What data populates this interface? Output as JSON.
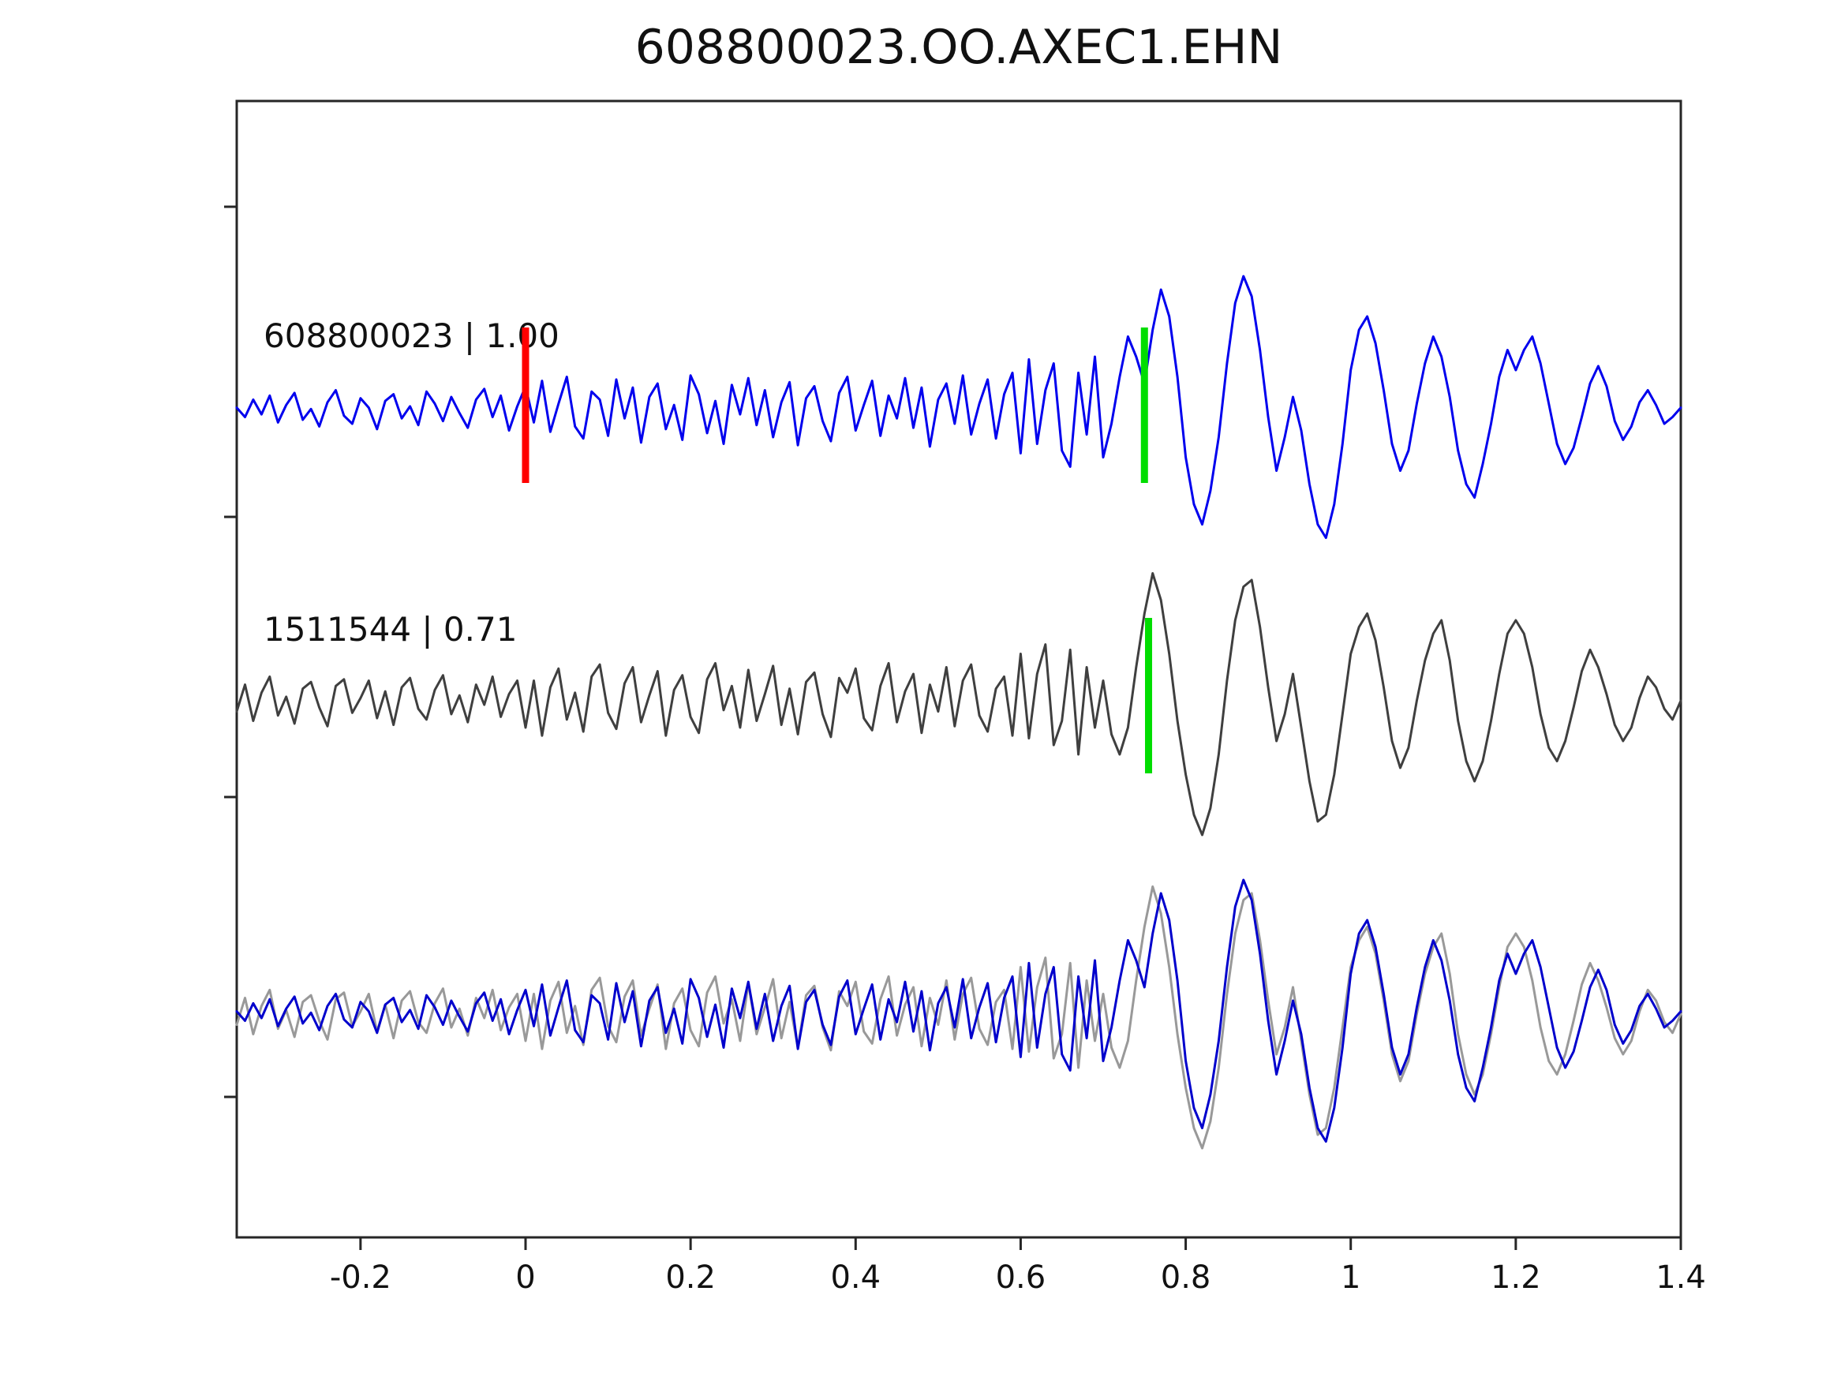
{
  "title": "608800023.OO.AXEC1.EHN",
  "colors": {
    "trace_blue": "#0000ee",
    "trace_dark_gray": "#3f3f3f",
    "trace_light_gray": "#999999",
    "pick_red": "#ff0000",
    "pick_green": "#00dd00",
    "axis": "#262626",
    "text": "#111111"
  },
  "chart_data": {
    "type": "line",
    "title": "608800023.OO.AXEC1.EHN",
    "xlabel": "",
    "ylabel": "",
    "xlim": [
      -0.35,
      1.4
    ],
    "grid": false,
    "legend": "none",
    "x_ticks": [
      -0.2,
      0,
      0.2,
      0.4,
      0.6,
      0.8,
      1,
      1.2,
      1.4
    ],
    "x_tick_labels": [
      "-0.2",
      "0",
      "0.2",
      "0.4",
      "0.6",
      "0.8",
      "1",
      "1.2",
      "1.4"
    ],
    "x_start": -0.35,
    "dx": 0.01,
    "panels": [
      {
        "label": "608800023 | 1.00",
        "series": [
          "master"
        ],
        "colors": [
          "#0000ee"
        ],
        "picks": [
          {
            "x": 0.0,
            "color": "#ff0000",
            "name": "origin-pick"
          },
          {
            "x": 0.75,
            "color": "#00dd00",
            "name": "arrival-pick"
          }
        ]
      },
      {
        "label": "1511544 | 0.71",
        "series": [
          "match"
        ],
        "colors": [
          "#3f3f3f"
        ],
        "picks": [
          {
            "x": 0.755,
            "color": "#00dd00",
            "name": "arrival-pick"
          }
        ]
      },
      {
        "label": "",
        "series": [
          "match",
          "master"
        ],
        "colors": [
          "#999999",
          "#0000cc"
        ],
        "picks": []
      }
    ],
    "series": {
      "master": [
        0.02,
        -0.05,
        0.08,
        -0.03,
        0.11,
        -0.09,
        0.04,
        0.13,
        -0.07,
        0.01,
        -0.12,
        0.06,
        0.15,
        -0.04,
        -0.1,
        0.09,
        0.02,
        -0.14,
        0.07,
        0.12,
        -0.06,
        0.03,
        -0.11,
        0.14,
        0.05,
        -0.08,
        0.1,
        -0.02,
        -0.13,
        0.08,
        0.16,
        -0.05,
        0.11,
        -0.15,
        0.03,
        0.18,
        -0.09,
        0.22,
        -0.16,
        0.05,
        0.25,
        -0.12,
        -0.21,
        0.14,
        0.08,
        -0.19,
        0.23,
        -0.06,
        0.17,
        -0.24,
        0.1,
        0.2,
        -0.14,
        0.04,
        -0.22,
        0.26,
        0.12,
        -0.17,
        0.07,
        -0.25,
        0.19,
        -0.03,
        0.24,
        -0.11,
        0.15,
        -0.2,
        0.06,
        0.21,
        -0.26,
        0.09,
        0.18,
        -0.08,
        -0.23,
        0.13,
        0.25,
        -0.15,
        0.04,
        0.22,
        -0.19,
        0.11,
        -0.06,
        0.24,
        -0.13,
        0.17,
        -0.27,
        0.08,
        0.2,
        -0.1,
        0.26,
        -0.18,
        0.05,
        0.23,
        -0.21,
        0.12,
        0.28,
        -0.32,
        0.38,
        -0.25,
        0.15,
        0.35,
        -0.3,
        -0.42,
        0.28,
        -0.18,
        0.4,
        -0.35,
        -0.1,
        0.25,
        0.55,
        0.4,
        0.2,
        0.6,
        0.9,
        0.7,
        0.25,
        -0.35,
        -0.7,
        -0.85,
        -0.6,
        -0.2,
        0.35,
        0.8,
        1.0,
        0.85,
        0.45,
        -0.05,
        -0.45,
        -0.2,
        0.1,
        -0.15,
        -0.55,
        -0.85,
        -0.95,
        -0.7,
        -0.25,
        0.3,
        0.6,
        0.7,
        0.5,
        0.15,
        -0.25,
        -0.45,
        -0.3,
        0.05,
        0.35,
        0.55,
        0.4,
        0.1,
        -0.3,
        -0.55,
        -0.65,
        -0.4,
        -0.1,
        0.25,
        0.45,
        0.3,
        0.45,
        0.55,
        0.35,
        0.05,
        -0.25,
        -0.4,
        -0.28,
        -0.05,
        0.2,
        0.33,
        0.18,
        -0.08,
        -0.22,
        -0.12,
        0.06,
        0.15,
        0.04,
        -0.1,
        -0.05,
        0.02
      ],
      "match": [
        -0.08,
        0.12,
        -0.15,
        0.06,
        0.18,
        -0.11,
        0.03,
        -0.17,
        0.09,
        0.14,
        -0.05,
        -0.19,
        0.11,
        0.16,
        -0.09,
        0.02,
        0.15,
        -0.13,
        0.07,
        -0.18,
        0.1,
        0.17,
        -0.06,
        -0.14,
        0.08,
        0.19,
        -0.1,
        0.04,
        -0.16,
        0.12,
        -0.03,
        0.18,
        -0.12,
        0.05,
        0.15,
        -0.2,
        0.15,
        -0.26,
        0.1,
        0.24,
        -0.14,
        0.06,
        -0.23,
        0.18,
        0.27,
        -0.09,
        -0.21,
        0.13,
        0.25,
        -0.16,
        0.04,
        0.22,
        -0.26,
        0.08,
        0.19,
        -0.12,
        -0.24,
        0.16,
        0.28,
        -0.07,
        0.11,
        -0.2,
        0.23,
        -0.15,
        0.05,
        0.26,
        -0.18,
        0.09,
        -0.25,
        0.14,
        0.21,
        -0.1,
        -0.27,
        0.17,
        0.06,
        0.24,
        -0.13,
        -0.22,
        0.11,
        0.28,
        -0.16,
        0.07,
        0.2,
        -0.24,
        0.12,
        -0.08,
        0.25,
        -0.19,
        0.15,
        0.27,
        -0.11,
        -0.23,
        0.09,
        0.18,
        -0.26,
        0.35,
        -0.28,
        0.2,
        0.42,
        -0.33,
        -0.15,
        0.38,
        -0.4,
        0.25,
        -0.2,
        0.15,
        -0.25,
        -0.4,
        -0.2,
        0.25,
        0.65,
        0.95,
        0.75,
        0.35,
        -0.15,
        -0.55,
        -0.85,
        -1.0,
        -0.8,
        -0.4,
        0.15,
        0.6,
        0.85,
        0.9,
        0.55,
        0.1,
        -0.3,
        -0.1,
        0.2,
        -0.2,
        -0.6,
        -0.9,
        -0.85,
        -0.55,
        -0.1,
        0.35,
        0.55,
        0.65,
        0.45,
        0.1,
        -0.3,
        -0.5,
        -0.35,
        0.0,
        0.3,
        0.5,
        0.6,
        0.3,
        -0.15,
        -0.45,
        -0.6,
        -0.45,
        -0.15,
        0.2,
        0.5,
        0.6,
        0.5,
        0.25,
        -0.1,
        -0.35,
        -0.45,
        -0.3,
        -0.05,
        0.22,
        0.38,
        0.25,
        0.05,
        -0.18,
        -0.3,
        -0.2,
        0.02,
        0.18,
        0.1,
        -0.06,
        -0.14,
        0.0
      ]
    }
  }
}
